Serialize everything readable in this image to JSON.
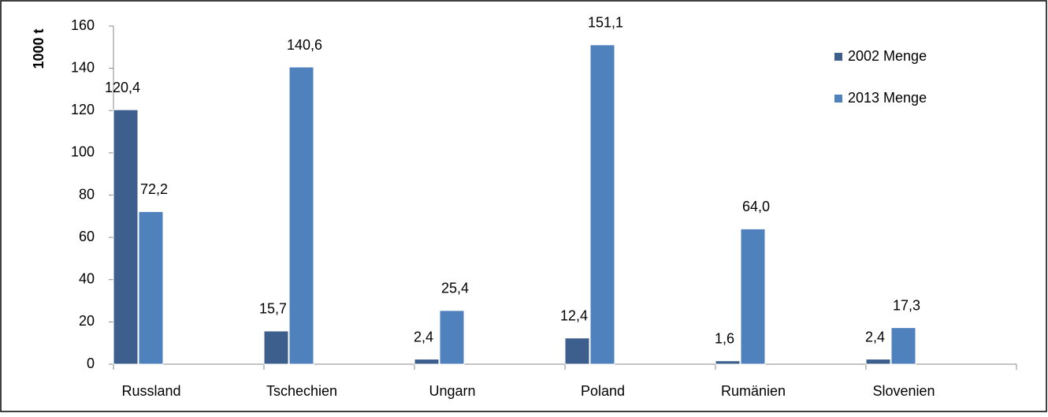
{
  "chart_data": {
    "type": "bar",
    "categories": [
      "Russland",
      "Tschechien",
      "Ungarn",
      "Poland",
      "Rumänien",
      "Slovenien"
    ],
    "series": [
      {
        "name": "2002 Menge",
        "color": "#3c5f8e",
        "values": [
          120.4,
          15.7,
          2.4,
          12.4,
          1.6,
          2.4
        ],
        "value_labels": [
          "120,4",
          "15,7",
          "2,4",
          "12,4",
          "1,6",
          "2,4"
        ]
      },
      {
        "name": "2013 Menge",
        "color": "#4f81bd",
        "values": [
          72.2,
          140.6,
          25.4,
          151.1,
          64.0,
          17.3
        ],
        "value_labels": [
          "72,2",
          "140,6",
          "25,4",
          "151,1",
          "64,0",
          "17,3"
        ]
      }
    ],
    "y_label": "1000 t",
    "ylim": [
      0,
      160
    ],
    "yticks": [
      0,
      20,
      40,
      60,
      80,
      100,
      120,
      140,
      160
    ],
    "grid": false,
    "legend": "upper right"
  }
}
